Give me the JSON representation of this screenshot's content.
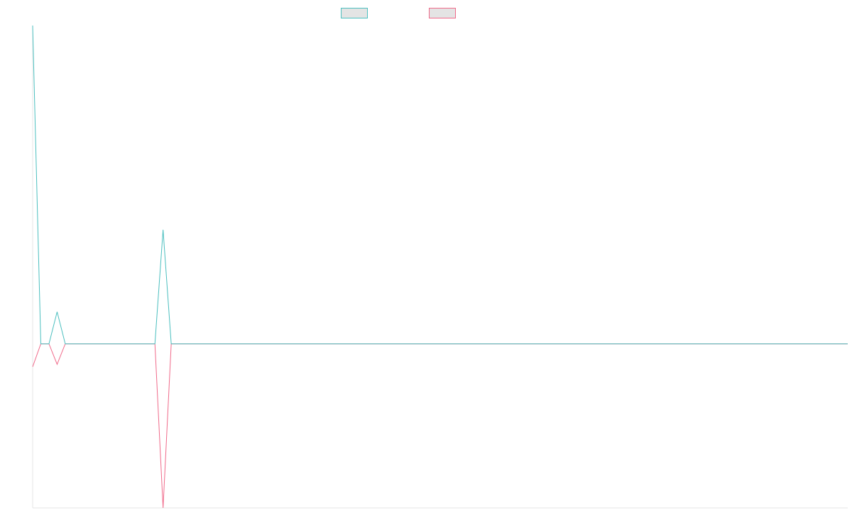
{
  "chart_data": {
    "type": "line",
    "title": "",
    "xlabel": "",
    "ylabel": "",
    "grid": false,
    "legend_position": "top-center",
    "x_count": 101,
    "ylim": [
      -100,
      194
    ],
    "series": [
      {
        "name": "",
        "color": "#4bbfbf",
        "points": [
          [
            0,
            194
          ],
          [
            1,
            0
          ],
          [
            2,
            0
          ],
          [
            3,
            19.5
          ],
          [
            4,
            0
          ],
          [
            5,
            0
          ],
          [
            6,
            0
          ],
          [
            7,
            0
          ],
          [
            8,
            0
          ],
          [
            9,
            0
          ],
          [
            10,
            0
          ],
          [
            11,
            0
          ],
          [
            12,
            0
          ],
          [
            13,
            0
          ],
          [
            14,
            0
          ],
          [
            15,
            0
          ],
          [
            16,
            69.5
          ],
          [
            17,
            0
          ],
          [
            18,
            0
          ],
          [
            19,
            0
          ],
          [
            20,
            0
          ],
          [
            100,
            0
          ]
        ]
      },
      {
        "name": "",
        "color": "#f06a8a",
        "points": [
          [
            0,
            -14
          ],
          [
            1,
            0
          ],
          [
            2,
            0
          ],
          [
            3,
            -12.5
          ],
          [
            4,
            0
          ],
          [
            5,
            0
          ],
          [
            6,
            0
          ],
          [
            7,
            0
          ],
          [
            8,
            0
          ],
          [
            9,
            0
          ],
          [
            10,
            0
          ],
          [
            11,
            0
          ],
          [
            12,
            0
          ],
          [
            13,
            0
          ],
          [
            14,
            0
          ],
          [
            15,
            0
          ],
          [
            16,
            -100
          ],
          [
            17,
            0
          ],
          [
            18,
            0
          ],
          [
            19,
            0
          ],
          [
            20,
            0
          ],
          [
            100,
            0
          ]
        ]
      }
    ]
  }
}
